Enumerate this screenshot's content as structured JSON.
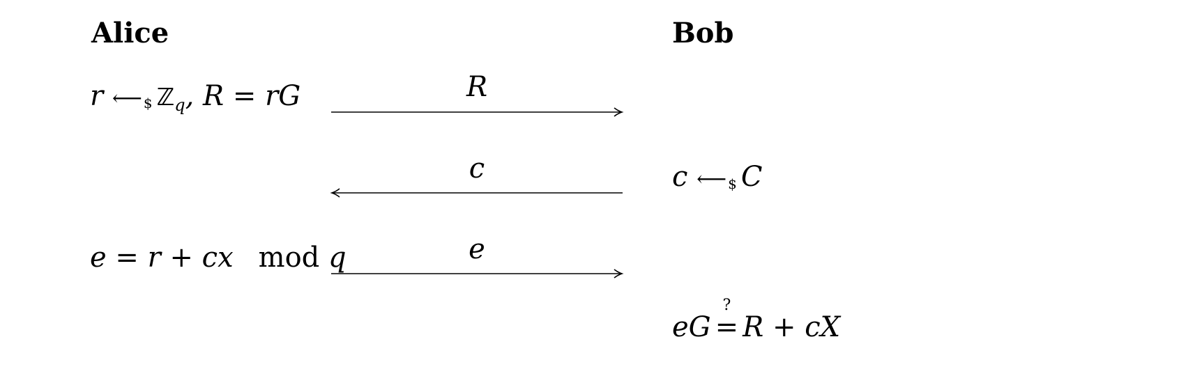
{
  "headings": {
    "left": "Alice",
    "right": "Bob"
  },
  "arrows": [
    {
      "label": "R",
      "direction": "right"
    },
    {
      "label": "c",
      "direction": "left"
    },
    {
      "label": "e",
      "direction": "right"
    }
  ],
  "left_steps": {
    "step1": {
      "r": "r",
      "arrow": "⟵",
      "dollar": "$",
      "Z": "ℤ",
      "q": "q",
      "rest": ", R = rG"
    },
    "step3": {
      "lhs": "e = r + cx",
      "mod": "mod",
      "q": "q"
    }
  },
  "right_steps": {
    "step2": {
      "c": "c",
      "arrow": "⟵",
      "dollar": "$",
      "C": "C"
    },
    "step4": {
      "lhs": "eG",
      "eq": "=",
      "q_mark": "?",
      "rhs": "R + cX"
    }
  }
}
